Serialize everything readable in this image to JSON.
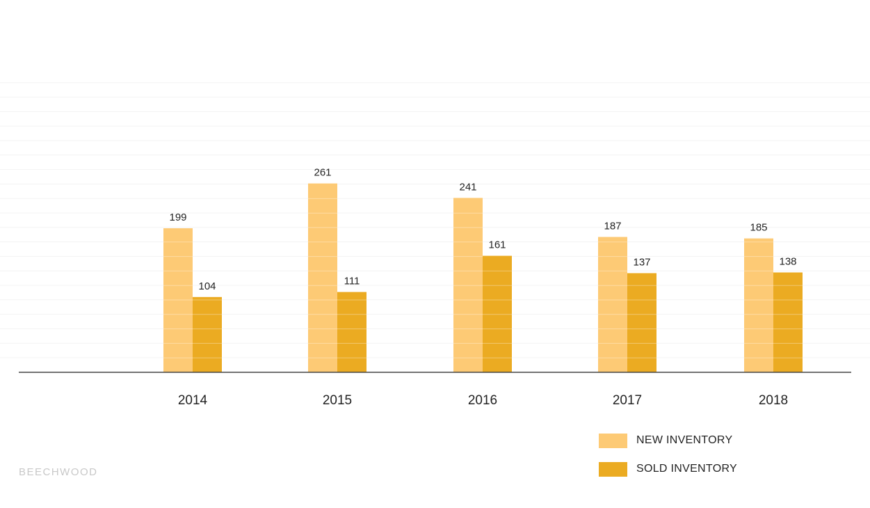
{
  "chart_data": {
    "type": "bar",
    "categories": [
      "2014",
      "2015",
      "2016",
      "2017",
      "2018"
    ],
    "series": [
      {
        "name": "NEW INVENTORY",
        "values": [
          199,
          261,
          241,
          187,
          185
        ],
        "color": "#fdca75"
      },
      {
        "name": "SOLD INVENTORY",
        "values": [
          104,
          111,
          161,
          137,
          138
        ],
        "color": "#ebab22"
      }
    ],
    "title": "",
    "xlabel": "",
    "ylabel": "",
    "ylim": [
      0,
      400
    ],
    "grid": true,
    "legend_position": "bottom-right"
  },
  "legend": {
    "items": [
      {
        "label": "NEW INVENTORY",
        "color": "#fdca75"
      },
      {
        "label": "SOLD INVENTORY",
        "color": "#ebab22"
      }
    ]
  },
  "brand": {
    "text": "BEECHWOOD"
  }
}
